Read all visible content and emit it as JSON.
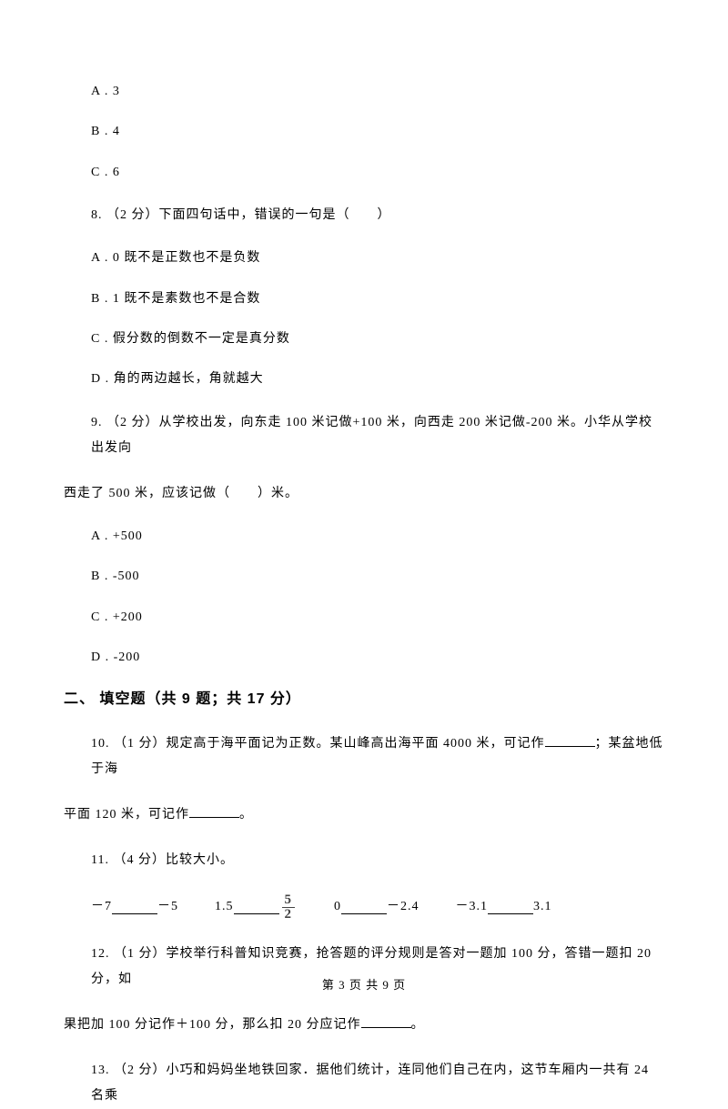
{
  "options7": {
    "a": "A . 3",
    "b": "B . 4",
    "c": "C . 6"
  },
  "q8": {
    "text": "8.  （2 分）下面四句话中，错误的一句是（　　）",
    "a": "A . 0 既不是正数也不是负数",
    "b": "B . 1 既不是素数也不是合数",
    "c": "C . 假分数的倒数不一定是真分数",
    "d": "D . 角的两边越长，角就越大"
  },
  "q9": {
    "line1": "9.   （2 分）从学校出发，向东走 100 米记做+100 米，向西走 200 米记做-200 米。小华从学校出发向",
    "line2": "西走了 500 米，应该记做（　　）米。",
    "a": "A . +500",
    "b": "B . -500",
    "c": "C . +200",
    "d": "D . -200"
  },
  "section2": "二、 填空题（共 9 题；共 17 分）",
  "q10": {
    "line1a": "10.  （1 分）规定高于海平面记为正数。某山峰高出海平面 4000 米，可记作",
    "line1b": "；某盆地低于海",
    "line2a": "平面 120 米，可记作",
    "line2b": "。"
  },
  "q11": {
    "text": "11.  （4 分）比较大小。",
    "item1a": "－7",
    "item1b": "－5",
    "item2a": "1.5",
    "frac_num": "5",
    "frac_den": "2",
    "item3a": "0",
    "item3b": "－2.4",
    "item4a": "－3.1",
    "item4b": "3.1"
  },
  "q12": {
    "line1": "12.  （1 分）学校举行科普知识竞赛，抢答题的评分规则是答对一题加 100 分，答错一题扣 20 分，如",
    "line2a": "果把加 100 分记作＋100 分，那么扣 20 分应记作",
    "line2b": "。"
  },
  "q13": {
    "text": "13.   （2 分）小巧和妈妈坐地铁回家．据他们统计，连同他们自己在内，这节车厢内一共有 24 名乘"
  },
  "footer": "第 3 页 共 9 页"
}
